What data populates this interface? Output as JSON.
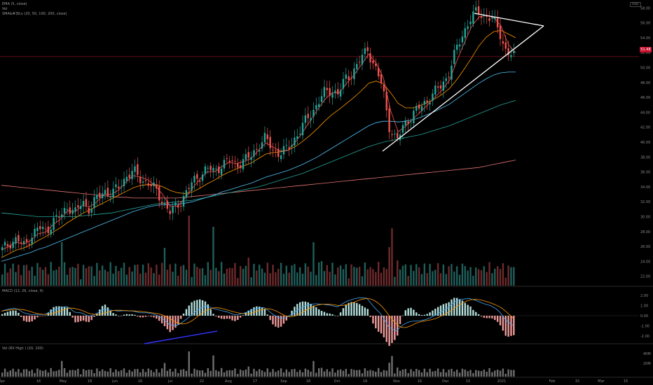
{
  "legends": {
    "pane1_line1": "EMA (5, close)",
    "pane1_line2": "Vol",
    "pane1_line3": "SMA&#39;s (20, 50, 100, 200, close)",
    "macd": "MACD (12, 26, close, 9)",
    "vol": "Vol (RV High ) (20, 100)"
  },
  "currency_badge": "USD",
  "last_price_label": "51.48",
  "colors": {
    "up": "#26a69a",
    "down": "#ef5350",
    "ema5": "#ff5252",
    "sma20": "#ff9800",
    "sma50": "#4fc3f7",
    "sma100": "#26a69a",
    "sma200": "#e57373",
    "trendline": "#ffffff",
    "macd_line": "#42a5f5",
    "signal_line": "#ff9800",
    "hist_pos": "#b2dfdb",
    "hist_neg": "#ef9a9a",
    "blue_line": "#3333ff"
  },
  "chart_data": [
    {
      "type": "line",
      "name": "price",
      "xlabel": "",
      "ylabel": "",
      "x_tick_labels": [
        "Apr",
        "16",
        "May",
        "18",
        "Jun",
        "16",
        "Jul",
        "22",
        "Aug",
        "17",
        "Sep",
        "18",
        "Oct",
        "19",
        "Nov",
        "16",
        "Dec",
        "15",
        "2021",
        "Feb",
        "15",
        "Mar",
        "15"
      ],
      "y_tick_labels": [
        "58.00",
        "56.00",
        "54.00",
        "52.00",
        "50.00",
        "48.00",
        "46.00",
        "44.00",
        "42.00",
        "40.00",
        "38.00",
        "36.00",
        "34.00",
        "32.00",
        "30.00",
        "28.00",
        "26.00",
        "24.00",
        "22.00"
      ],
      "ylim": [
        21,
        59
      ],
      "last_price": 51.48,
      "close_approx": [
        25.5,
        26.5,
        27.0,
        26.0,
        27.5,
        28.5,
        28.0,
        29.5,
        30.0,
        31.5,
        30.5,
        32.0,
        31.0,
        32.5,
        33.5,
        33.0,
        34.0,
        35.5,
        36.0,
        35.0,
        34.5,
        33.5,
        32.0,
        30.5,
        31.5,
        33.0,
        34.5,
        35.5,
        36.5,
        36.0,
        37.0,
        37.5,
        37.0,
        37.5,
        38.0,
        39.5,
        40.5,
        39.0,
        38.5,
        39.0,
        40.5,
        42.0,
        43.5,
        45.0,
        46.5,
        47.0,
        46.5,
        48.5,
        49.5,
        51.0,
        52.5,
        50.0,
        47.5,
        42.0,
        40.0,
        42.5,
        43.5,
        44.5,
        45.5,
        46.5,
        47.5,
        49.0,
        52.0,
        54.5,
        56.5,
        57.5,
        57.0,
        56.5,
        55.0,
        52.0,
        51.48
      ],
      "ema5_approx": [
        25.5,
        26.0,
        26.6,
        26.3,
        26.8,
        27.7,
        27.9,
        28.9,
        29.6,
        30.8,
        30.6,
        31.5,
        31.3,
        32.0,
        33.0,
        33.0,
        33.6,
        34.7,
        35.5,
        35.3,
        34.9,
        34.1,
        32.9,
        31.4,
        31.4,
        32.5,
        33.8,
        35.0,
        36.0,
        36.0,
        36.7,
        37.3,
        37.1,
        37.4,
        37.8,
        38.9,
        39.9,
        39.3,
        38.8,
        38.9,
        40.0,
        41.3,
        42.8,
        44.3,
        45.7,
        46.6,
        46.6,
        47.9,
        49.0,
        50.4,
        51.8,
        50.6,
        48.6,
        44.2,
        41.4,
        42.1,
        43.1,
        44.0,
        45.0,
        46.0,
        47.0,
        48.3,
        50.9,
        53.3,
        55.5,
        56.8,
        57.0,
        56.7,
        55.6,
        53.1,
        52.0
      ],
      "sma20_approx": [
        24.5,
        25.0,
        25.5,
        25.8,
        26.2,
        26.8,
        27.3,
        27.9,
        28.5,
        29.2,
        29.8,
        30.4,
        30.9,
        31.4,
        31.9,
        32.4,
        32.9,
        33.4,
        33.9,
        34.2,
        34.3,
        34.3,
        34.0,
        33.5,
        33.2,
        33.1,
        33.3,
        33.8,
        34.4,
        34.9,
        35.5,
        36.0,
        36.4,
        36.8,
        37.2,
        37.8,
        38.4,
        38.6,
        38.7,
        38.9,
        39.4,
        40.1,
        40.9,
        41.8,
        42.8,
        43.7,
        44.4,
        45.2,
        46.0,
        46.9,
        47.9,
        48.2,
        47.8,
        46.6,
        45.2,
        44.6,
        44.6,
        44.9,
        45.3,
        45.8,
        46.4,
        47.2,
        48.4,
        49.8,
        51.3,
        52.9,
        54.1,
        54.8,
        55.0,
        54.5,
        54.0
      ],
      "sma50_approx": [
        24.0,
        24.3,
        24.6,
        24.9,
        25.2,
        25.6,
        25.9,
        26.3,
        26.7,
        27.1,
        27.5,
        27.9,
        28.3,
        28.7,
        29.1,
        29.5,
        29.9,
        30.3,
        30.7,
        31.0,
        31.3,
        31.5,
        31.6,
        31.6,
        31.7,
        31.8,
        32.0,
        32.3,
        32.6,
        32.9,
        33.3,
        33.6,
        33.9,
        34.2,
        34.5,
        34.9,
        35.3,
        35.6,
        35.9,
        36.2,
        36.6,
        37.0,
        37.5,
        38.0,
        38.6,
        39.2,
        39.8,
        40.4,
        41.0,
        41.6,
        42.2,
        42.6,
        42.8,
        42.8,
        42.7,
        42.8,
        43.0,
        43.3,
        43.7,
        44.1,
        44.6,
        45.1,
        45.8,
        46.5,
        47.2,
        47.9,
        48.5,
        49.0,
        49.3,
        49.4,
        49.4
      ],
      "sma100_approx": [
        30.5,
        30.4,
        30.3,
        30.2,
        30.1,
        30.0,
        30.0,
        30.0,
        30.0,
        30.0,
        30.0,
        30.1,
        30.2,
        30.3,
        30.4,
        30.5,
        30.7,
        30.9,
        31.1,
        31.3,
        31.5,
        31.7,
        31.8,
        31.9,
        32.0,
        32.1,
        32.2,
        32.4,
        32.6,
        32.8,
        33.0,
        33.2,
        33.4,
        33.6,
        33.8,
        34.0,
        34.3,
        34.6,
        34.9,
        35.2,
        35.5,
        35.8,
        36.2,
        36.6,
        37.0,
        37.4,
        37.8,
        38.2,
        38.6,
        39.0,
        39.4,
        39.7,
        40.0,
        40.2,
        40.4,
        40.6,
        40.8,
        41.0,
        41.3,
        41.6,
        41.9,
        42.2,
        42.6,
        43.0,
        43.4,
        43.8,
        44.2,
        44.6,
        45.0,
        45.3,
        45.6
      ],
      "sma200_approx": [
        34.2,
        34.1,
        34.0,
        33.9,
        33.8,
        33.7,
        33.6,
        33.5,
        33.4,
        33.3,
        33.2,
        33.1,
        33.0,
        32.9,
        32.8,
        32.7,
        32.6,
        32.6,
        32.5,
        32.5,
        32.5,
        32.5,
        32.5,
        32.5,
        32.5,
        32.6,
        32.7,
        32.8,
        32.9,
        33.0,
        33.1,
        33.2,
        33.3,
        33.4,
        33.5,
        33.6,
        33.7,
        33.8,
        33.9,
        34.0,
        34.1,
        34.2,
        34.3,
        34.4,
        34.5,
        34.6,
        34.7,
        34.8,
        34.9,
        35.0,
        35.1,
        35.2,
        35.3,
        35.4,
        35.5,
        35.6,
        35.7,
        35.8,
        35.9,
        36.0,
        36.1,
        36.2,
        36.3,
        36.4,
        36.5,
        36.6,
        36.8,
        37.0,
        37.2,
        37.4,
        37.6
      ],
      "annotations": [
        "ascending trendline",
        "descending trendline",
        "symmetrical triangle"
      ]
    },
    {
      "type": "bar",
      "name": "MACD",
      "y_tick_labels": [
        "2.00",
        "1.00",
        "0.00",
        "-1.00",
        "-2.00"
      ],
      "ylim": [
        -2.6,
        2.6
      ]
    },
    {
      "type": "bar",
      "name": "Vol (RV High)",
      "y_tick_labels": [
        "40M",
        "20M"
      ]
    }
  ]
}
